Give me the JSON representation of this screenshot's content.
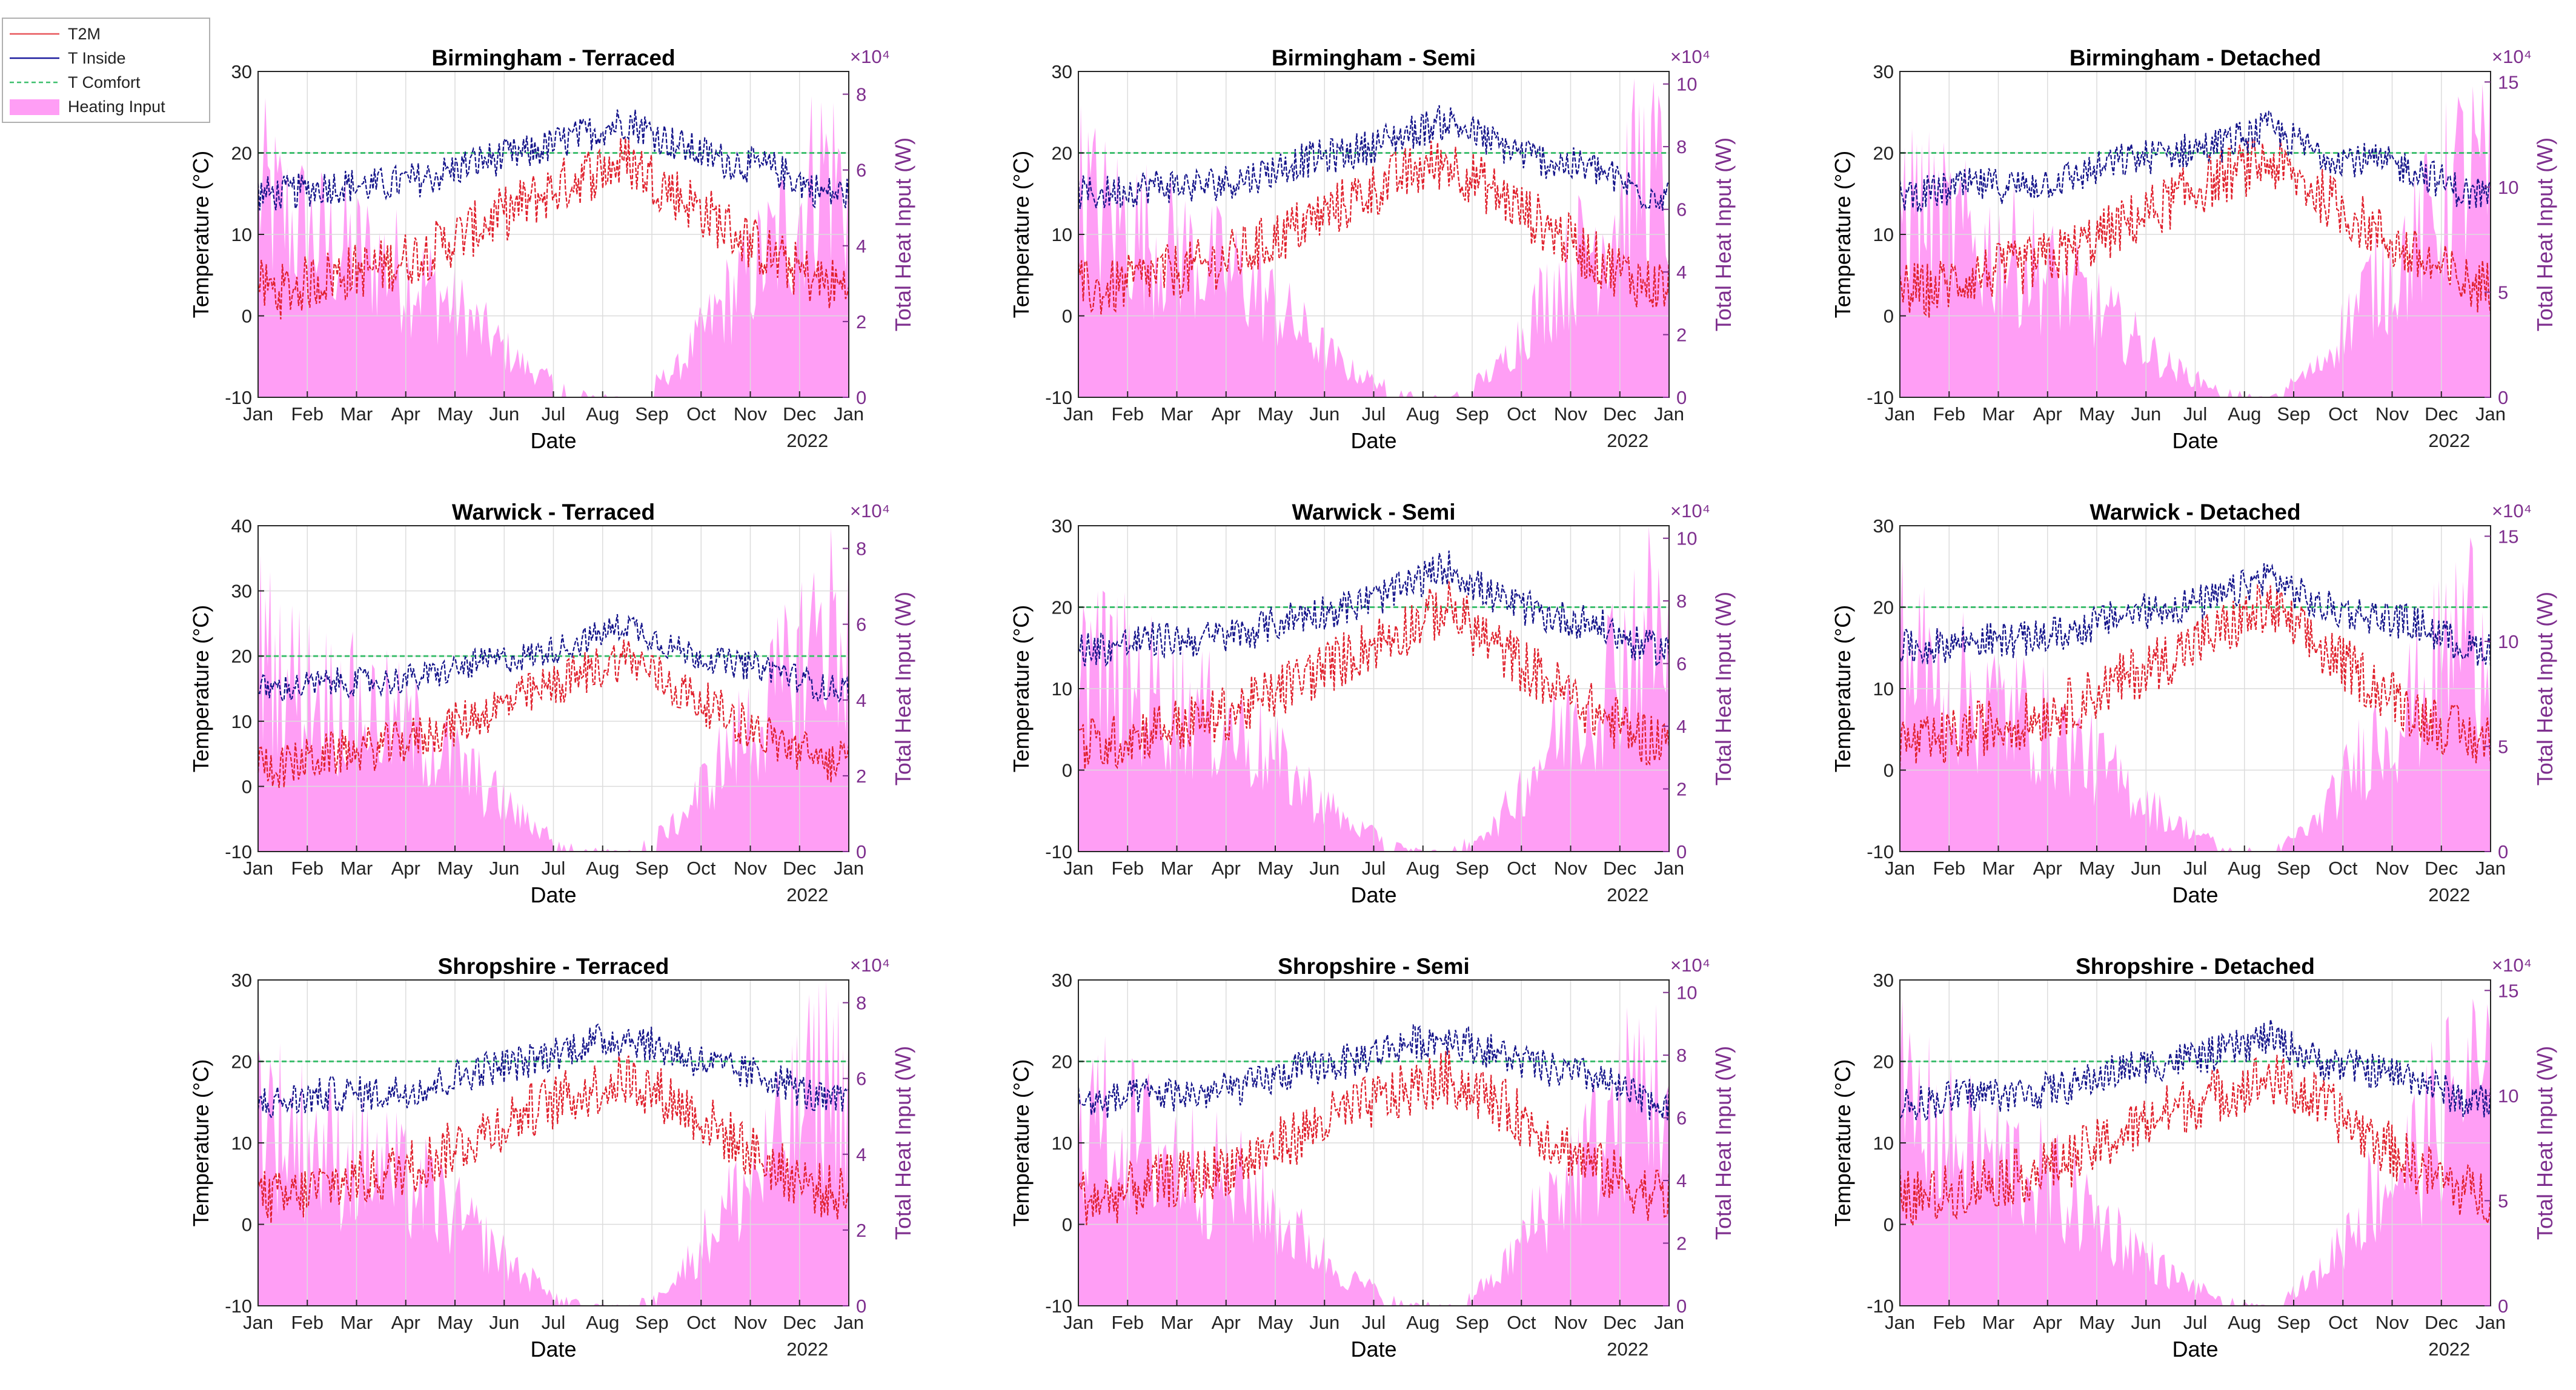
{
  "legend": {
    "entries": [
      {
        "label": "T2M",
        "color": "#e8575b",
        "style": "solid"
      },
      {
        "label": "T Inside",
        "color": "#1c1c9e",
        "style": "solid"
      },
      {
        "label": "T Comfort",
        "color": "#3fbf6f",
        "style": "dashed"
      },
      {
        "label": "Heating Input",
        "color": "#ff9ef5",
        "style": "fill"
      }
    ]
  },
  "colors": {
    "t2m": "#e0202c",
    "inside": "#14148a",
    "comfort": "#3fbf6f",
    "heat": "#ff9ef5",
    "right_axis": "#7e2f8e",
    "grid": "#dcdcdc"
  },
  "chart_data": [
    {
      "type": "area",
      "title": "Birmingham - Terraced",
      "xlabel": "Date",
      "ylabel": "Temperature (°C)",
      "y2label": "Total Heat Input (W)",
      "y2_exponent": "×10⁴",
      "x_ticks": [
        "Jan",
        "Feb",
        "Mar",
        "Apr",
        "May",
        "Jun",
        "Jul",
        "Aug",
        "Sep",
        "Oct",
        "Nov",
        "Dec",
        "Jan"
      ],
      "x_year_label": "2022",
      "ylim": [
        -10,
        30
      ],
      "y_ticks": [
        -10,
        0,
        10,
        20,
        30
      ],
      "y2lim": [
        0,
        8.6
      ],
      "y2_ticks": [
        0,
        2,
        4,
        6,
        8
      ],
      "comfort_temp": 20,
      "t2m_mean_by_month": [
        3,
        5,
        6,
        8,
        11,
        14,
        17,
        19,
        15,
        11,
        7,
        4
      ],
      "t_inside_mean_by_month": [
        15,
        16,
        16,
        17,
        19,
        20,
        22,
        24,
        21,
        19,
        18,
        15
      ],
      "heat_input_by_month": [
        6.5,
        5.5,
        5,
        4,
        2.5,
        1,
        0.2,
        0,
        1,
        3.5,
        5.5,
        8.5
      ]
    },
    {
      "type": "area",
      "title": "Birmingham - Semi",
      "xlabel": "Date",
      "ylabel": "Temperature (°C)",
      "y2label": "Total Heat Input (W)",
      "y2_exponent": "×10⁴",
      "x_ticks": [
        "Jan",
        "Feb",
        "Mar",
        "Apr",
        "May",
        "Jun",
        "Jul",
        "Aug",
        "Sep",
        "Oct",
        "Nov",
        "Dec",
        "Jan"
      ],
      "x_year_label": "2022",
      "ylim": [
        -10,
        30
      ],
      "y_ticks": [
        -10,
        0,
        10,
        20,
        30
      ],
      "y2lim": [
        0,
        10.4
      ],
      "y2_ticks": [
        0,
        2,
        4,
        6,
        8,
        10
      ],
      "comfort_temp": 20,
      "t2m_mean_by_month": [
        3,
        5,
        6,
        8,
        11,
        14,
        17,
        19,
        15,
        11,
        7,
        4
      ],
      "t_inside_mean_by_month": [
        15,
        16,
        16,
        17,
        19,
        20,
        22,
        24,
        21,
        19,
        18,
        15
      ],
      "heat_input_by_month": [
        8,
        7,
        6,
        5,
        3,
        1.2,
        0.3,
        0,
        1.2,
        4.5,
        7,
        10
      ]
    },
    {
      "type": "area",
      "title": "Birmingham - Detached",
      "xlabel": "Date",
      "ylabel": "Temperature (°C)",
      "y2label": "Total Heat Input (W)",
      "y2_exponent": "×10⁴",
      "x_ticks": [
        "Jan",
        "Feb",
        "Mar",
        "Apr",
        "May",
        "Jun",
        "Jul",
        "Aug",
        "Sep",
        "Oct",
        "Nov",
        "Dec",
        "Jan"
      ],
      "x_year_label": "2022",
      "ylim": [
        -10,
        30
      ],
      "y_ticks": [
        -10,
        0,
        10,
        20,
        30
      ],
      "y2lim": [
        0,
        15.5
      ],
      "y2_ticks": [
        0,
        5,
        10,
        15
      ],
      "comfort_temp": 20,
      "t2m_mean_by_month": [
        3,
        5,
        6,
        8,
        11,
        14,
        17,
        19,
        15,
        11,
        7,
        4
      ],
      "t_inside_mean_by_month": [
        15,
        16,
        16,
        17,
        19,
        20,
        21,
        23,
        20,
        19,
        18,
        15
      ],
      "heat_input_by_month": [
        12,
        10,
        9,
        7,
        4.5,
        2,
        0.5,
        0,
        2,
        7,
        10,
        15
      ]
    },
    {
      "type": "area",
      "title": "Warwick - Terraced",
      "xlabel": "Date",
      "ylabel": "Temperature (°C)",
      "y2label": "Total Heat Input (W)",
      "y2_exponent": "×10⁴",
      "x_ticks": [
        "Jan",
        "Feb",
        "Mar",
        "Apr",
        "May",
        "Jun",
        "Jul",
        "Aug",
        "Sep",
        "Oct",
        "Nov",
        "Dec",
        "Jan"
      ],
      "x_year_label": "2022",
      "ylim": [
        -10,
        40
      ],
      "y_ticks": [
        -10,
        0,
        10,
        20,
        30,
        40
      ],
      "y2lim": [
        0,
        8.6
      ],
      "y2_ticks": [
        0,
        2,
        4,
        6,
        8
      ],
      "comfort_temp": 20,
      "t2m_mean_by_month": [
        3,
        5,
        6,
        8,
        11,
        14,
        17,
        20,
        15,
        11,
        7,
        4
      ],
      "t_inside_mean_by_month": [
        15,
        16,
        16,
        17,
        19,
        20,
        22,
        25,
        21,
        19,
        18,
        15
      ],
      "heat_input_by_month": [
        6.5,
        5.5,
        5,
        4,
        2.5,
        1,
        0.2,
        0,
        1,
        3.5,
        5.5,
        8.5
      ]
    },
    {
      "type": "area",
      "title": "Warwick - Semi",
      "xlabel": "Date",
      "ylabel": "Temperature (°C)",
      "y2label": "Total Heat Input (W)",
      "y2_exponent": "×10⁴",
      "x_ticks": [
        "Jan",
        "Feb",
        "Mar",
        "Apr",
        "May",
        "Jun",
        "Jul",
        "Aug",
        "Sep",
        "Oct",
        "Nov",
        "Dec",
        "Jan"
      ],
      "x_year_label": "2022",
      "ylim": [
        -10,
        30
      ],
      "y_ticks": [
        -10,
        0,
        10,
        20,
        30
      ],
      "y2lim": [
        0,
        10.4
      ],
      "y2_ticks": [
        0,
        2,
        4,
        6,
        8,
        10
      ],
      "comfort_temp": 20,
      "t2m_mean_by_month": [
        3,
        5,
        6,
        8,
        11,
        14,
        17,
        20,
        15,
        11,
        7,
        4
      ],
      "t_inside_mean_by_month": [
        15,
        16,
        16,
        17,
        19,
        20,
        22,
        25,
        21,
        19,
        18,
        15
      ],
      "heat_input_by_month": [
        8,
        7,
        6,
        5,
        3,
        1.2,
        0.3,
        0,
        1.2,
        4.5,
        7,
        10
      ]
    },
    {
      "type": "area",
      "title": "Warwick - Detached",
      "xlabel": "Date",
      "ylabel": "Temperature (°C)",
      "y2label": "Total Heat Input (W)",
      "y2_exponent": "×10⁴",
      "x_ticks": [
        "Jan",
        "Feb",
        "Mar",
        "Apr",
        "May",
        "Jun",
        "Jul",
        "Aug",
        "Sep",
        "Oct",
        "Nov",
        "Dec",
        "Jan"
      ],
      "x_year_label": "2022",
      "ylim": [
        -10,
        30
      ],
      "y_ticks": [
        -10,
        0,
        10,
        20,
        30
      ],
      "y2lim": [
        0,
        15.5
      ],
      "y2_ticks": [
        0,
        5,
        10,
        15
      ],
      "comfort_temp": 20,
      "t2m_mean_by_month": [
        3,
        5,
        6,
        8,
        11,
        14,
        17,
        20,
        15,
        11,
        7,
        4
      ],
      "t_inside_mean_by_month": [
        15,
        16,
        16,
        17,
        19,
        20,
        21,
        24,
        20,
        19,
        18,
        15
      ],
      "heat_input_by_month": [
        12,
        10,
        9,
        7,
        4.5,
        2,
        0.5,
        0,
        2,
        7,
        10,
        15
      ]
    },
    {
      "type": "area",
      "title": "Shropshire - Terraced",
      "xlabel": "Date",
      "ylabel": "Temperature (°C)",
      "y2label": "Total Heat Input (W)",
      "y2_exponent": "×10⁴",
      "x_ticks": [
        "Jan",
        "Feb",
        "Mar",
        "Apr",
        "May",
        "Jun",
        "Jul",
        "Aug",
        "Sep",
        "Oct",
        "Nov",
        "Dec",
        "Jan"
      ],
      "x_year_label": "2022",
      "ylim": [
        -10,
        30
      ],
      "y_ticks": [
        -10,
        0,
        10,
        20,
        30
      ],
      "y2lim": [
        0,
        8.6
      ],
      "y2_ticks": [
        0,
        2,
        4,
        6,
        8
      ],
      "comfort_temp": 20,
      "t2m_mean_by_month": [
        3,
        5,
        6,
        8,
        11,
        14,
        16,
        18,
        15,
        11,
        7,
        4
      ],
      "t_inside_mean_by_month": [
        15,
        16,
        16,
        17,
        19,
        20,
        22,
        23,
        21,
        19,
        18,
        15
      ],
      "heat_input_by_month": [
        6.5,
        5.5,
        5,
        4,
        2.5,
        1,
        0.2,
        0,
        1,
        3.5,
        5.5,
        8.5
      ]
    },
    {
      "type": "area",
      "title": "Shropshire - Semi",
      "xlabel": "Date",
      "ylabel": "Temperature (°C)",
      "y2label": "Total Heat Input (W)",
      "y2_exponent": "×10⁴",
      "x_ticks": [
        "Jan",
        "Feb",
        "Mar",
        "Apr",
        "May",
        "Jun",
        "Jul",
        "Aug",
        "Sep",
        "Oct",
        "Nov",
        "Dec",
        "Jan"
      ],
      "x_year_label": "2022",
      "ylim": [
        -10,
        30
      ],
      "y_ticks": [
        -10,
        0,
        10,
        20,
        30
      ],
      "y2lim": [
        0,
        10.4
      ],
      "y2_ticks": [
        0,
        2,
        4,
        6,
        8,
        10
      ],
      "comfort_temp": 20,
      "t2m_mean_by_month": [
        3,
        5,
        6,
        8,
        11,
        14,
        16,
        18,
        15,
        11,
        7,
        4
      ],
      "t_inside_mean_by_month": [
        15,
        16,
        16,
        17,
        19,
        20,
        22,
        23,
        21,
        19,
        18,
        15
      ],
      "heat_input_by_month": [
        8,
        7,
        6,
        5,
        3,
        1.2,
        0.3,
        0,
        1.2,
        4.5,
        7,
        10
      ]
    },
    {
      "type": "area",
      "title": "Shropshire - Detached",
      "xlabel": "Date",
      "ylabel": "Temperature (°C)",
      "y2label": "Total Heat Input (W)",
      "y2_exponent": "×10⁴",
      "x_ticks": [
        "Jan",
        "Feb",
        "Mar",
        "Apr",
        "May",
        "Jun",
        "Jul",
        "Aug",
        "Sep",
        "Oct",
        "Nov",
        "Dec",
        "Jan"
      ],
      "x_year_label": "2022",
      "ylim": [
        -10,
        30
      ],
      "y_ticks": [
        -10,
        0,
        10,
        20,
        30
      ],
      "y2lim": [
        0,
        15.5
      ],
      "y2_ticks": [
        0,
        5,
        10,
        15
      ],
      "comfort_temp": 20,
      "t2m_mean_by_month": [
        3,
        5,
        6,
        8,
        11,
        14,
        16,
        18,
        15,
        11,
        7,
        4
      ],
      "t_inside_mean_by_month": [
        15,
        16,
        16,
        17,
        19,
        20,
        21,
        23,
        20,
        19,
        18,
        15
      ],
      "heat_input_by_month": [
        12,
        10,
        9,
        7,
        4.5,
        2,
        0.5,
        0,
        2,
        7,
        10,
        15
      ]
    }
  ]
}
